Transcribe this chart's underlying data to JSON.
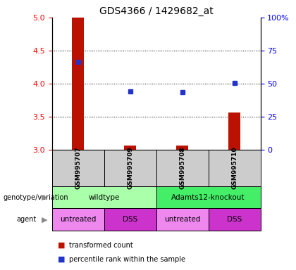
{
  "title": "GDS4366 / 1429682_at",
  "samples": [
    "GSM995707",
    "GSM995709",
    "GSM995708",
    "GSM995710"
  ],
  "bar_bottoms": [
    3.0,
    3.0,
    3.0,
    3.0
  ],
  "bar_tops": [
    5.0,
    3.06,
    3.06,
    3.56
  ],
  "blue_y": [
    4.33,
    3.88,
    3.87,
    4.01
  ],
  "ylim": [
    3.0,
    5.0
  ],
  "yticks_left": [
    3.0,
    3.5,
    4.0,
    4.5,
    5.0
  ],
  "yticks_right_vals": [
    0,
    25,
    50,
    75,
    100
  ],
  "yticks_right_labels": [
    "0",
    "25",
    "50",
    "75",
    "100%"
  ],
  "bar_color": "#bb1100",
  "blue_color": "#2233cc",
  "sample_box_color": "#cccccc",
  "geno_data": [
    {
      "label": "wildtype",
      "start": 0,
      "end": 2,
      "color": "#aaffaa"
    },
    {
      "label": "Adamts12-knockout",
      "start": 2,
      "end": 4,
      "color": "#44ee66"
    }
  ],
  "agent_labels": [
    "untreated",
    "DSS",
    "untreated",
    "DSS"
  ],
  "agent_colors": {
    "untreated": "#ee88ee",
    "DSS": "#cc33cc"
  },
  "legend_red": "transformed count",
  "legend_blue": "percentile rank within the sample",
  "n_samples": 4
}
